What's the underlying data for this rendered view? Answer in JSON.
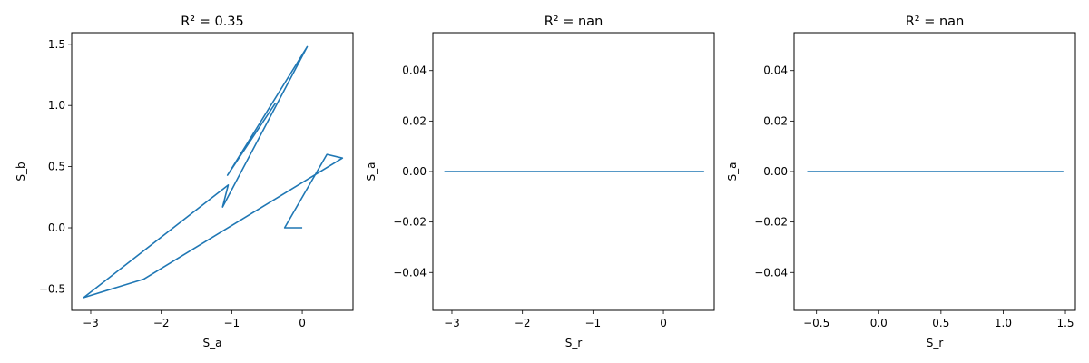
{
  "chart_data": [
    {
      "type": "line",
      "title": "R² = 0.35",
      "xlabel": "S_a",
      "ylabel": "S_b",
      "xlim": [
        -3.27,
        0.72
      ],
      "ylim": [
        -0.675,
        1.595
      ],
      "xticks": [
        -3,
        -2,
        -1,
        0
      ],
      "xtick_labels": [
        "−3",
        "−2",
        "−1",
        "0"
      ],
      "yticks": [
        -0.5,
        0.0,
        0.5,
        1.0,
        1.5
      ],
      "ytick_labels": [
        "−0.5",
        "0.0",
        "0.5",
        "1.0",
        "1.5"
      ],
      "color": "#1f77b4",
      "grid": false,
      "series": [
        {
          "x": [
            0.0,
            -0.25,
            0.35,
            0.57,
            -2.25,
            -3.1,
            -1.05,
            -1.13,
            0.07,
            -1.06,
            -0.38
          ],
          "y": [
            0.0,
            0.0,
            0.6,
            0.57,
            -0.42,
            -0.57,
            0.35,
            0.17,
            1.48,
            0.43,
            1.02
          ]
        }
      ]
    },
    {
      "type": "line",
      "title": "R² = nan",
      "xlabel": "S_r",
      "ylabel": "S_a",
      "xlim": [
        -3.27,
        0.72
      ],
      "ylim": [
        -0.055,
        0.055
      ],
      "xticks": [
        -3,
        -2,
        -1,
        0
      ],
      "xtick_labels": [
        "−3",
        "−2",
        "−1",
        "0"
      ],
      "yticks": [
        -0.04,
        -0.02,
        0.0,
        0.02,
        0.04
      ],
      "ytick_labels": [
        "−0.04",
        "−0.02",
        "0.00",
        "0.02",
        "0.04"
      ],
      "color": "#1f77b4",
      "grid": false,
      "series": [
        {
          "x": [
            0.0,
            -0.25,
            0.35,
            0.57,
            -2.25,
            -3.1,
            -1.05,
            -1.13,
            0.07,
            -1.06,
            -0.38
          ],
          "y": [
            0,
            0,
            0,
            0,
            0,
            0,
            0,
            0,
            0,
            0,
            0
          ]
        }
      ]
    },
    {
      "type": "line",
      "title": "R² = nan",
      "xlabel": "S_r",
      "ylabel": "S_a",
      "xlim": [
        -0.68,
        1.58
      ],
      "ylim": [
        -0.055,
        0.055
      ],
      "xticks": [
        -0.5,
        0.0,
        0.5,
        1.0,
        1.5
      ],
      "xtick_labels": [
        "−0.5",
        "0.0",
        "0.5",
        "1.0",
        "1.5"
      ],
      "yticks": [
        -0.04,
        -0.02,
        0.0,
        0.02,
        0.04
      ],
      "ytick_labels": [
        "−0.04",
        "−0.02",
        "0.00",
        "0.02",
        "0.04"
      ],
      "color": "#1f77b4",
      "grid": false,
      "series": [
        {
          "x": [
            0.0,
            0.6,
            0.57,
            -0.42,
            -0.57,
            0.35,
            0.17,
            1.48,
            0.43,
            1.02
          ],
          "y": [
            0,
            0,
            0,
            0,
            0,
            0,
            0,
            0,
            0,
            0
          ]
        }
      ]
    }
  ]
}
